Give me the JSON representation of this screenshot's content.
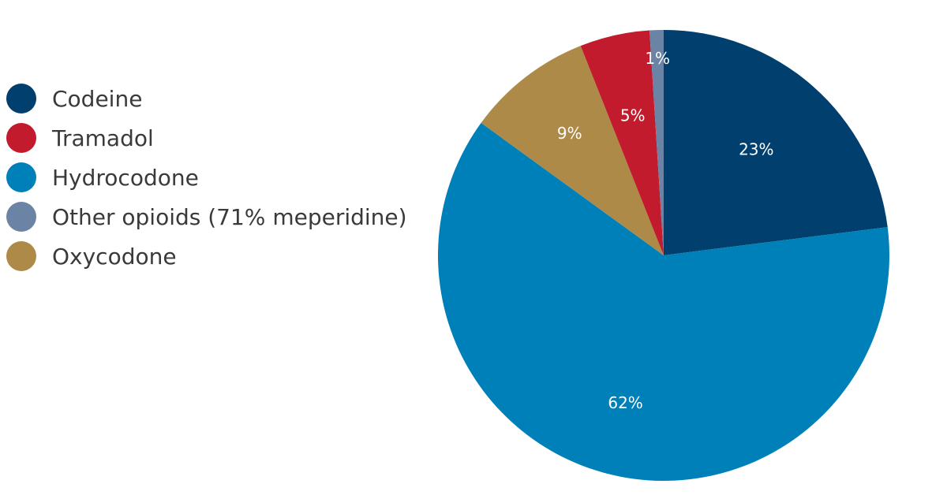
{
  "chart_data": {
    "type": "pie",
    "title": "",
    "start_angle_deg": 0,
    "direction": "clockwise",
    "slices": [
      {
        "name": "Codeine",
        "value": 23,
        "label": "23%",
        "color": "#003f6e"
      },
      {
        "name": "Hydrocodone",
        "value": 62,
        "label": "62%",
        "color": "#0080b9"
      },
      {
        "name": "Oxycodone",
        "value": 9,
        "label": "9%",
        "color": "#ad8a47"
      },
      {
        "name": "Tramadol",
        "value": 5,
        "label": "5%",
        "color": "#c21b2e"
      },
      {
        "name": "Other opioids (71% meperidine)",
        "value": 1,
        "label": "1%",
        "color": "#6b84a6"
      }
    ],
    "legend_order": [
      "Codeine",
      "Tramadol",
      "Hydrocodone",
      "Other opioids (71% meperidine)",
      "Oxycodone"
    ],
    "legend_position": "left"
  }
}
